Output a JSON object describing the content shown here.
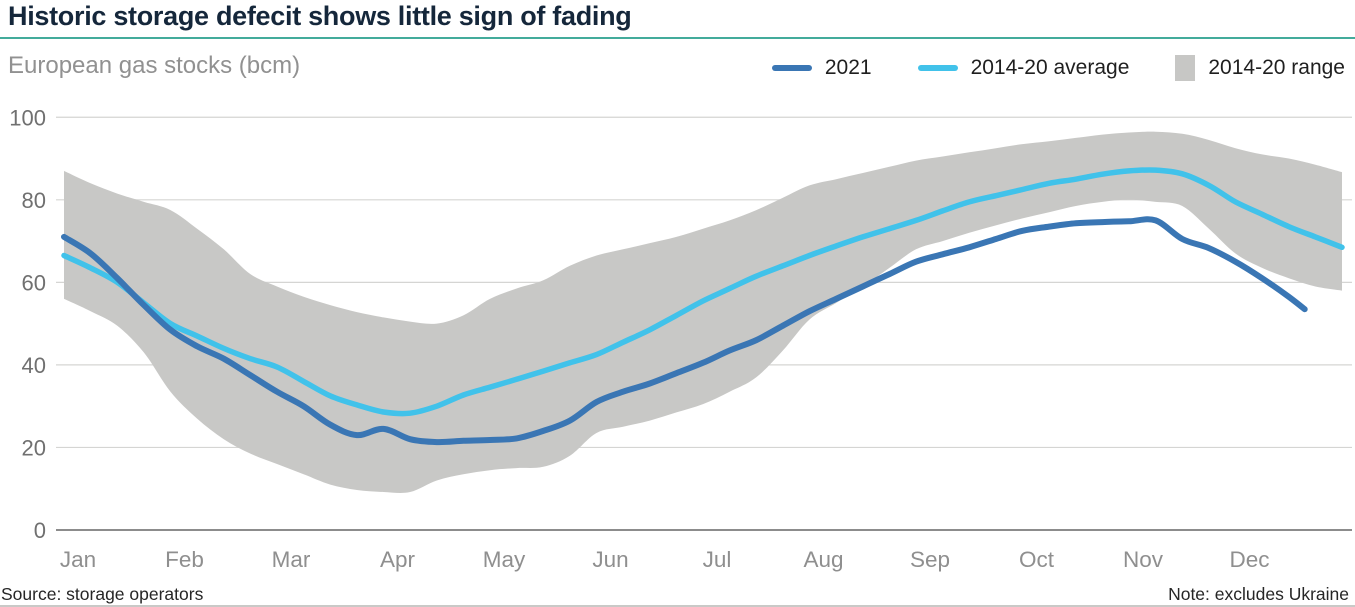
{
  "header": {
    "title": "Historic storage defecit shows little sign of fading",
    "subtitle": "European gas stocks (bcm)"
  },
  "legend": {
    "items": [
      {
        "label": "2021",
        "swatch": "line",
        "color": "#3a76b4"
      },
      {
        "label": "2014-20 average",
        "swatch": "line",
        "color": "#41c2ea"
      },
      {
        "label": "2014-20 range",
        "swatch": "box",
        "color": "#c7c7c5"
      }
    ]
  },
  "footer": {
    "source": "Source: storage operators",
    "note": "Note: excludes Ukraine"
  },
  "colors": {
    "title": "#15273b",
    "title_rule": "#43ab9b",
    "gridline": "#d5d5d3",
    "zero_line": "#8c8c8c",
    "axis_label": "#707070",
    "month_label": "#8f8f8f"
  },
  "chart_data": {
    "type": "line",
    "title": "European gas stocks (bcm)",
    "x_unit": "months (Jan 1 = 0)",
    "x_range": [
      0,
      12
    ],
    "x_tick_labels": [
      "Jan",
      "Feb",
      "Mar",
      "Apr",
      "May",
      "Jun",
      "Jul",
      "Aug",
      "Sep",
      "Oct",
      "Nov",
      "Dec"
    ],
    "y_ticks": [
      0,
      20,
      40,
      60,
      80,
      100
    ],
    "ylim": [
      0,
      105
    ],
    "grid": "horizontal",
    "legend_position": "top-right",
    "series": [
      {
        "name": "2014-20 range",
        "kind": "band",
        "color": "#c8c8c6",
        "x": [
          0,
          0.25,
          0.5,
          0.75,
          1,
          1.25,
          1.5,
          1.75,
          2,
          2.25,
          2.5,
          2.75,
          3,
          3.25,
          3.5,
          3.75,
          4,
          4.25,
          4.5,
          4.75,
          5,
          5.25,
          5.5,
          5.75,
          6,
          6.25,
          6.5,
          6.75,
          7,
          7.25,
          7.5,
          7.75,
          8,
          8.25,
          8.5,
          8.75,
          9,
          9.25,
          9.5,
          9.75,
          10,
          10.25,
          10.5,
          10.75,
          11,
          11.25,
          11.5,
          11.75,
          12
        ],
        "y_top": [
          87,
          84,
          81.5,
          79.5,
          77.5,
          73,
          68,
          62,
          59,
          56.5,
          54.5,
          52.8,
          51.5,
          50.5,
          50,
          52,
          56,
          58.5,
          60.5,
          64,
          66.5,
          68,
          69.5,
          71,
          73,
          75,
          77.5,
          80.5,
          83.5,
          85,
          86.5,
          88,
          89.5,
          90.5,
          91.5,
          92.5,
          93.5,
          94.2,
          95,
          95.8,
          96.3,
          96.5,
          96,
          94.5,
          92.5,
          91,
          90,
          88.5,
          86.7
        ],
        "y_bottom": [
          56,
          53,
          49.5,
          43,
          33.5,
          27,
          22,
          18.5,
          16,
          13.5,
          11,
          9.7,
          9.2,
          9.2,
          12,
          13.5,
          14.5,
          15,
          15.3,
          18,
          23.5,
          25,
          26.5,
          28.5,
          30.5,
          33.5,
          37,
          43.5,
          51,
          55,
          59,
          63.5,
          68,
          70,
          72,
          73.8,
          75.5,
          77,
          78.5,
          79.5,
          80,
          79.5,
          78.5,
          73,
          67,
          63.5,
          61,
          59,
          58
        ]
      },
      {
        "name": "2014-20 average",
        "kind": "line",
        "color": "#41c2ea",
        "stroke_width": 5.5,
        "x": [
          0,
          0.25,
          0.5,
          0.75,
          1,
          1.25,
          1.5,
          1.75,
          2,
          2.25,
          2.5,
          2.75,
          3,
          3.25,
          3.5,
          3.75,
          4,
          4.25,
          4.5,
          4.75,
          5,
          5.25,
          5.5,
          5.75,
          6,
          6.25,
          6.5,
          6.75,
          7,
          7.25,
          7.5,
          7.75,
          8,
          8.25,
          8.5,
          8.75,
          9,
          9.25,
          9.5,
          9.75,
          10,
          10.25,
          10.5,
          10.75,
          11,
          11.25,
          11.5,
          11.75,
          12
        ],
        "y": [
          66.5,
          63.5,
          60,
          55,
          50,
          47,
          44,
          41.5,
          39.5,
          36,
          32.5,
          30.3,
          28.6,
          28.3,
          30,
          32.7,
          34.6,
          36.5,
          38.5,
          40.5,
          42.5,
          45.5,
          48.5,
          52,
          55.5,
          58.5,
          61.5,
          64,
          66.5,
          68.8,
          71,
          73,
          75,
          77.3,
          79.5,
          81,
          82.5,
          84,
          85,
          86.2,
          87,
          87.2,
          86.3,
          83.5,
          79.5,
          76.5,
          73.5,
          71,
          68.5
        ]
      },
      {
        "name": "2021",
        "kind": "line",
        "color": "#3a76b4",
        "stroke_width": 6,
        "x": [
          0,
          0.25,
          0.5,
          0.75,
          1,
          1.25,
          1.5,
          1.75,
          2,
          2.25,
          2.5,
          2.75,
          3,
          3.25,
          3.5,
          3.75,
          4,
          4.25,
          4.5,
          4.75,
          5,
          5.25,
          5.5,
          5.75,
          6,
          6.25,
          6.5,
          6.75,
          7,
          7.25,
          7.5,
          7.75,
          8,
          8.25,
          8.5,
          8.75,
          9,
          9.25,
          9.5,
          9.75,
          10,
          10.25,
          10.5,
          10.75,
          11,
          11.25,
          11.5,
          11.65
        ],
        "y": [
          71,
          67,
          61,
          54.5,
          48.5,
          44.5,
          41.5,
          37.5,
          33.5,
          30,
          25.5,
          23,
          24.5,
          22,
          21.3,
          21.6,
          21.8,
          22.2,
          24,
          26.5,
          31,
          33.5,
          35.5,
          38,
          40.5,
          43.5,
          46,
          49.5,
          53,
          56,
          59,
          62,
          65,
          66.8,
          68.5,
          70.5,
          72.5,
          73.5,
          74.3,
          74.6,
          74.8,
          75,
          70.5,
          68.3,
          65,
          61,
          56.5,
          53.5
        ]
      }
    ]
  }
}
